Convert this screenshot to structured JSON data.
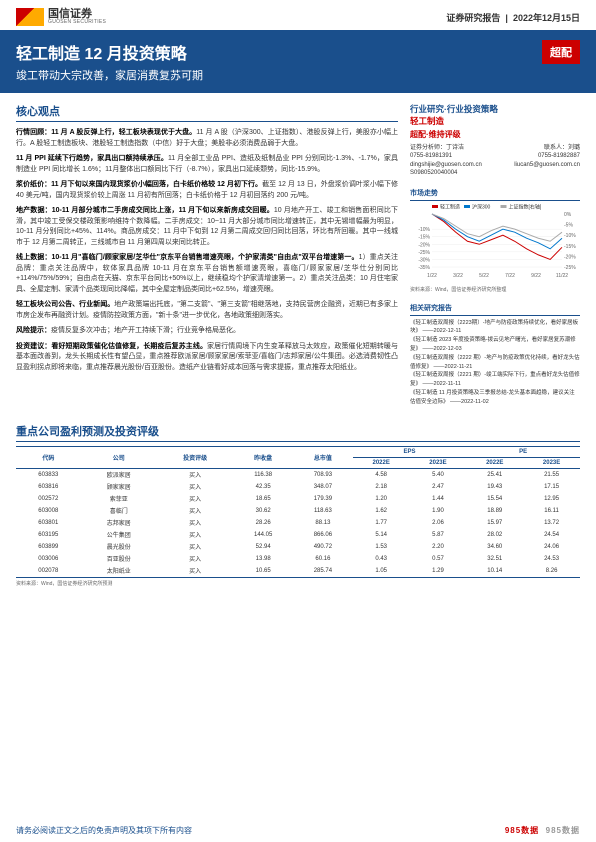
{
  "header": {
    "logo_cn": "国信证券",
    "logo_en": "GUOSEN SECURITIES",
    "report_type": "证券研究报告",
    "date": "2022年12月15日"
  },
  "title_block": {
    "title": "轻工制造 12 月投资策略",
    "subtitle": "竣工带动大宗改善，家居消费复苏可期",
    "badge": "超配"
  },
  "core_view": {
    "heading": "核心观点",
    "p1": {
      "lead": "行情回顾：11 月 A 股反弹上行，轻工板块表现优于大盘。",
      "body": "11 月 A 股（沪深300、上证指数）、港股反弹上行，美股亦小幅上行。A 股轻工制造板块、港股轻工制造指数（中信）好于大盘；美股非必须消费品弱于大盘。"
    },
    "p2": {
      "lead": "11 月 PPI 延续下行趋势，家具出口额持续承压。",
      "body": "11 月全部工业品 PPI、造纸及纸制品业 PPI 分别同比-1.3%、-1.7%，家具制造业 PPI 同比增长 1.6%；11月整体出口额同比下行（-8.7%），家具出口延续颓势，同比-15.9%。"
    },
    "p3": {
      "lead": "浆价纸价：11 月下旬以来国内现货浆价小幅回落，白卡纸价格较 12 月初下行。",
      "body": "截至 12 月 13 日，外盘浆价调叶浆小幅下修 40 美元/吨，国内现货浆价较上周涨 11 月初有所回落；白卡纸价格于 12 月初回落约 200 元/吨。"
    },
    "p4": {
      "lead": "地产数据：10-11 月部分城市二手房成交同比上涨，11 月下旬以来新房成交回暖。",
      "body": "10 月地产开工、竣工和销售面积同比下滑，其中竣工受保交楼政策影响维持个数降幅。二手房成交：10~11 月大部分城市同比增速转正，其中无锡增幅最为明显，10-11 月分别同比+45%、114%。商品房成交：11 月中下旬到 12 月第二周成交回归同比回落，环比有所回暖。其中一线城市于 12 月第二周转正，三线城市自 11 月第四周以来同比转正。"
    },
    "p5": {
      "lead": "线上数据：10-11 月\"喜临门/顾家家居/芝华仕\"京东平台销售增速亮眼，个护家清类\"自由点\"双平台增速第一。",
      "body": "1）重点关注品牌：重点关注品牌中，软体家具品牌 10-11 月在京东平台销售额增速亮眼，喜临门/顾家家居/芝华仕分别同比+114%/75%/59%；自由点在天猫、京东平台同比+50%以上，继续稳均个护家清增速第一。2）重点关注品类：10 月住宅家具、全屋定制、家清个品类现同比降幅，其中全屋定制品类同比+62.5%，增速亮眼。"
    },
    "p6": {
      "lead": "轻工板块公司公告、行业新闻。",
      "body": "地产政策端出托底，\"第二支箭\"、\"第三支箭\"相继落地，支持民营房企融资，近期已有多家上市房企发布再融资计划。疫情防控政策方面，\"新十条\"进一步优化，各地政策细则落实。"
    },
    "p7": {
      "lead": "风险提示：",
      "body": "疫情反复多次冲击；地产开工持续下滑；行业竞争格局恶化。"
    },
    "p8": {
      "lead": "投资建议：看好短期政策催化估值修复，长期疫后复苏主线。",
      "body": "家居行情周境下内生变革释放马太效应，政策催化短期转暖与基本面改善到，龙头长期成长性有望凸显，重点推荐欧派家居/顾家家居/索菲亚/喜临门/志邦家居/公牛集团。必选消费韧性凸显盈利拐点即将来临，重点推荐晨光股份/百亚股份。造纸产业链看好成本回落与需求提振，重点推荐太阳纸业。"
    }
  },
  "right_panel": {
    "research_type": "行业研究·行业投资策略",
    "industry": "轻工制造",
    "rating": "超配·维持评级",
    "analyst_label": "证券分析师：丁诗洁",
    "contact_label": "联系人：刘璐",
    "phone1": "0755-81981391",
    "phone2": "0755-81982887",
    "email1": "dingshijie@guosen.com.cn",
    "email2": "liucan5@guosen.com.cn",
    "license": "S0980520040004",
    "chart_section": "市场走势",
    "chart": {
      "legend": [
        "轻工制造",
        "沪深300",
        "上证指数[右轴]"
      ],
      "legend_colors": [
        "#c00",
        "#07c",
        "#aaa"
      ],
      "x_labels": [
        "1/22",
        "3/22",
        "5/22",
        "7/22",
        "9/22",
        "11/22"
      ],
      "y_left_ticks": [
        "-10%",
        "-15%",
        "-20%",
        "-25%",
        "-30%",
        "-35%"
      ],
      "y_right_ticks": [
        "0%",
        "-5%",
        "-10%",
        "-15%",
        "-20%",
        "-25%"
      ],
      "series": [
        {
          "color": "#c00",
          "points": [
            0,
            -5,
            -12,
            -18,
            -20,
            -17,
            -14,
            -18,
            -23,
            -27,
            -30,
            -22
          ]
        },
        {
          "color": "#07c",
          "points": [
            0,
            -4,
            -10,
            -15,
            -18,
            -14,
            -10,
            -12,
            -16,
            -19,
            -23,
            -16
          ]
        },
        {
          "color": "#aaa",
          "points": [
            0,
            -3,
            -8,
            -13,
            -15,
            -11,
            -8,
            -10,
            -13,
            -16,
            -18,
            -12
          ]
        }
      ],
      "ylim": [
        -35,
        0
      ],
      "background_color": "#ffffff",
      "grid_color": "#eeeeee",
      "fontsize": 5
    },
    "chart_src": "资料来源：Wind，国信证券经济研究所整理",
    "related_heading": "相关研究报告",
    "related": [
      "《轻工制造双周报（2223期）-地产与防疫政策持续优化，看好家居板块》 ——2022-12-11",
      "《轻工制造 2023 年度投资策略-拨云见地产曙光，看好家居复苏潮修复》 ——2022-12-03",
      "《轻工制造双周报（2222 期）-地产与防疫政策优化持续，看好龙头估值修复》 ——2022-11-21",
      "《轻工制造双周报（2221 期）-竣工端实际下行，重点看好龙头估值修复》 ——2022-11-11",
      "《轻工制造 11 月投资策略及三季报总结-龙头基本面趋稳，建议关注估值安全边际》 ——2022-11-02"
    ]
  },
  "table": {
    "title": "重点公司盈利预测及投资评级",
    "columns": [
      "代码",
      "公司",
      "投资评级",
      "昨收盘",
      "总市值",
      "EPS 2022E",
      "EPS 2023E",
      "PE 2022E",
      "PE 2023E"
    ],
    "col_span_headers": [
      "",
      "",
      "",
      "",
      "",
      "EPS",
      "",
      "PE",
      ""
    ],
    "unit_row": [
      "",
      "",
      "",
      "(元)",
      "(亿元)",
      "2022E",
      "2023E",
      "2022E",
      "2023E"
    ],
    "rows": [
      [
        "603833",
        "欧派家居",
        "买入",
        "116.38",
        "708.93",
        "4.58",
        "5.40",
        "25.41",
        "21.55"
      ],
      [
        "603816",
        "顾家家居",
        "买入",
        "42.35",
        "348.07",
        "2.18",
        "2.47",
        "19.43",
        "17.15"
      ],
      [
        "002572",
        "索菲亚",
        "买入",
        "18.65",
        "179.39",
        "1.20",
        "1.44",
        "15.54",
        "12.95"
      ],
      [
        "603008",
        "喜临门",
        "买入",
        "30.62",
        "118.63",
        "1.62",
        "1.90",
        "18.89",
        "16.11"
      ],
      [
        "603801",
        "志邦家居",
        "买入",
        "28.26",
        "88.13",
        "1.77",
        "2.06",
        "15.97",
        "13.72"
      ],
      [
        "603195",
        "公牛集团",
        "买入",
        "144.05",
        "866.06",
        "5.14",
        "5.87",
        "28.02",
        "24.54"
      ],
      [
        "603899",
        "晨光股份",
        "买入",
        "52.94",
        "490.72",
        "1.53",
        "2.20",
        "34.60",
        "24.06"
      ],
      [
        "003006",
        "百亚股份",
        "买入",
        "13.98",
        "60.16",
        "0.43",
        "0.57",
        "32.51",
        "24.53"
      ],
      [
        "002078",
        "太阳纸业",
        "买入",
        "10.65",
        "285.74",
        "1.05",
        "1.29",
        "10.14",
        "8.26"
      ]
    ],
    "src": "资料来源：Wind，国信证券经济研究所预测"
  },
  "footer": {
    "disclaimer": "请务必阅读正文之后的免责声明及其项下所有内容",
    "watermark_a": "985数据",
    "watermark_b": "985数据"
  },
  "colors": {
    "primary": "#1a4f8c",
    "accent": "#c00",
    "text": "#333",
    "muted": "#666",
    "wm": "#999"
  }
}
